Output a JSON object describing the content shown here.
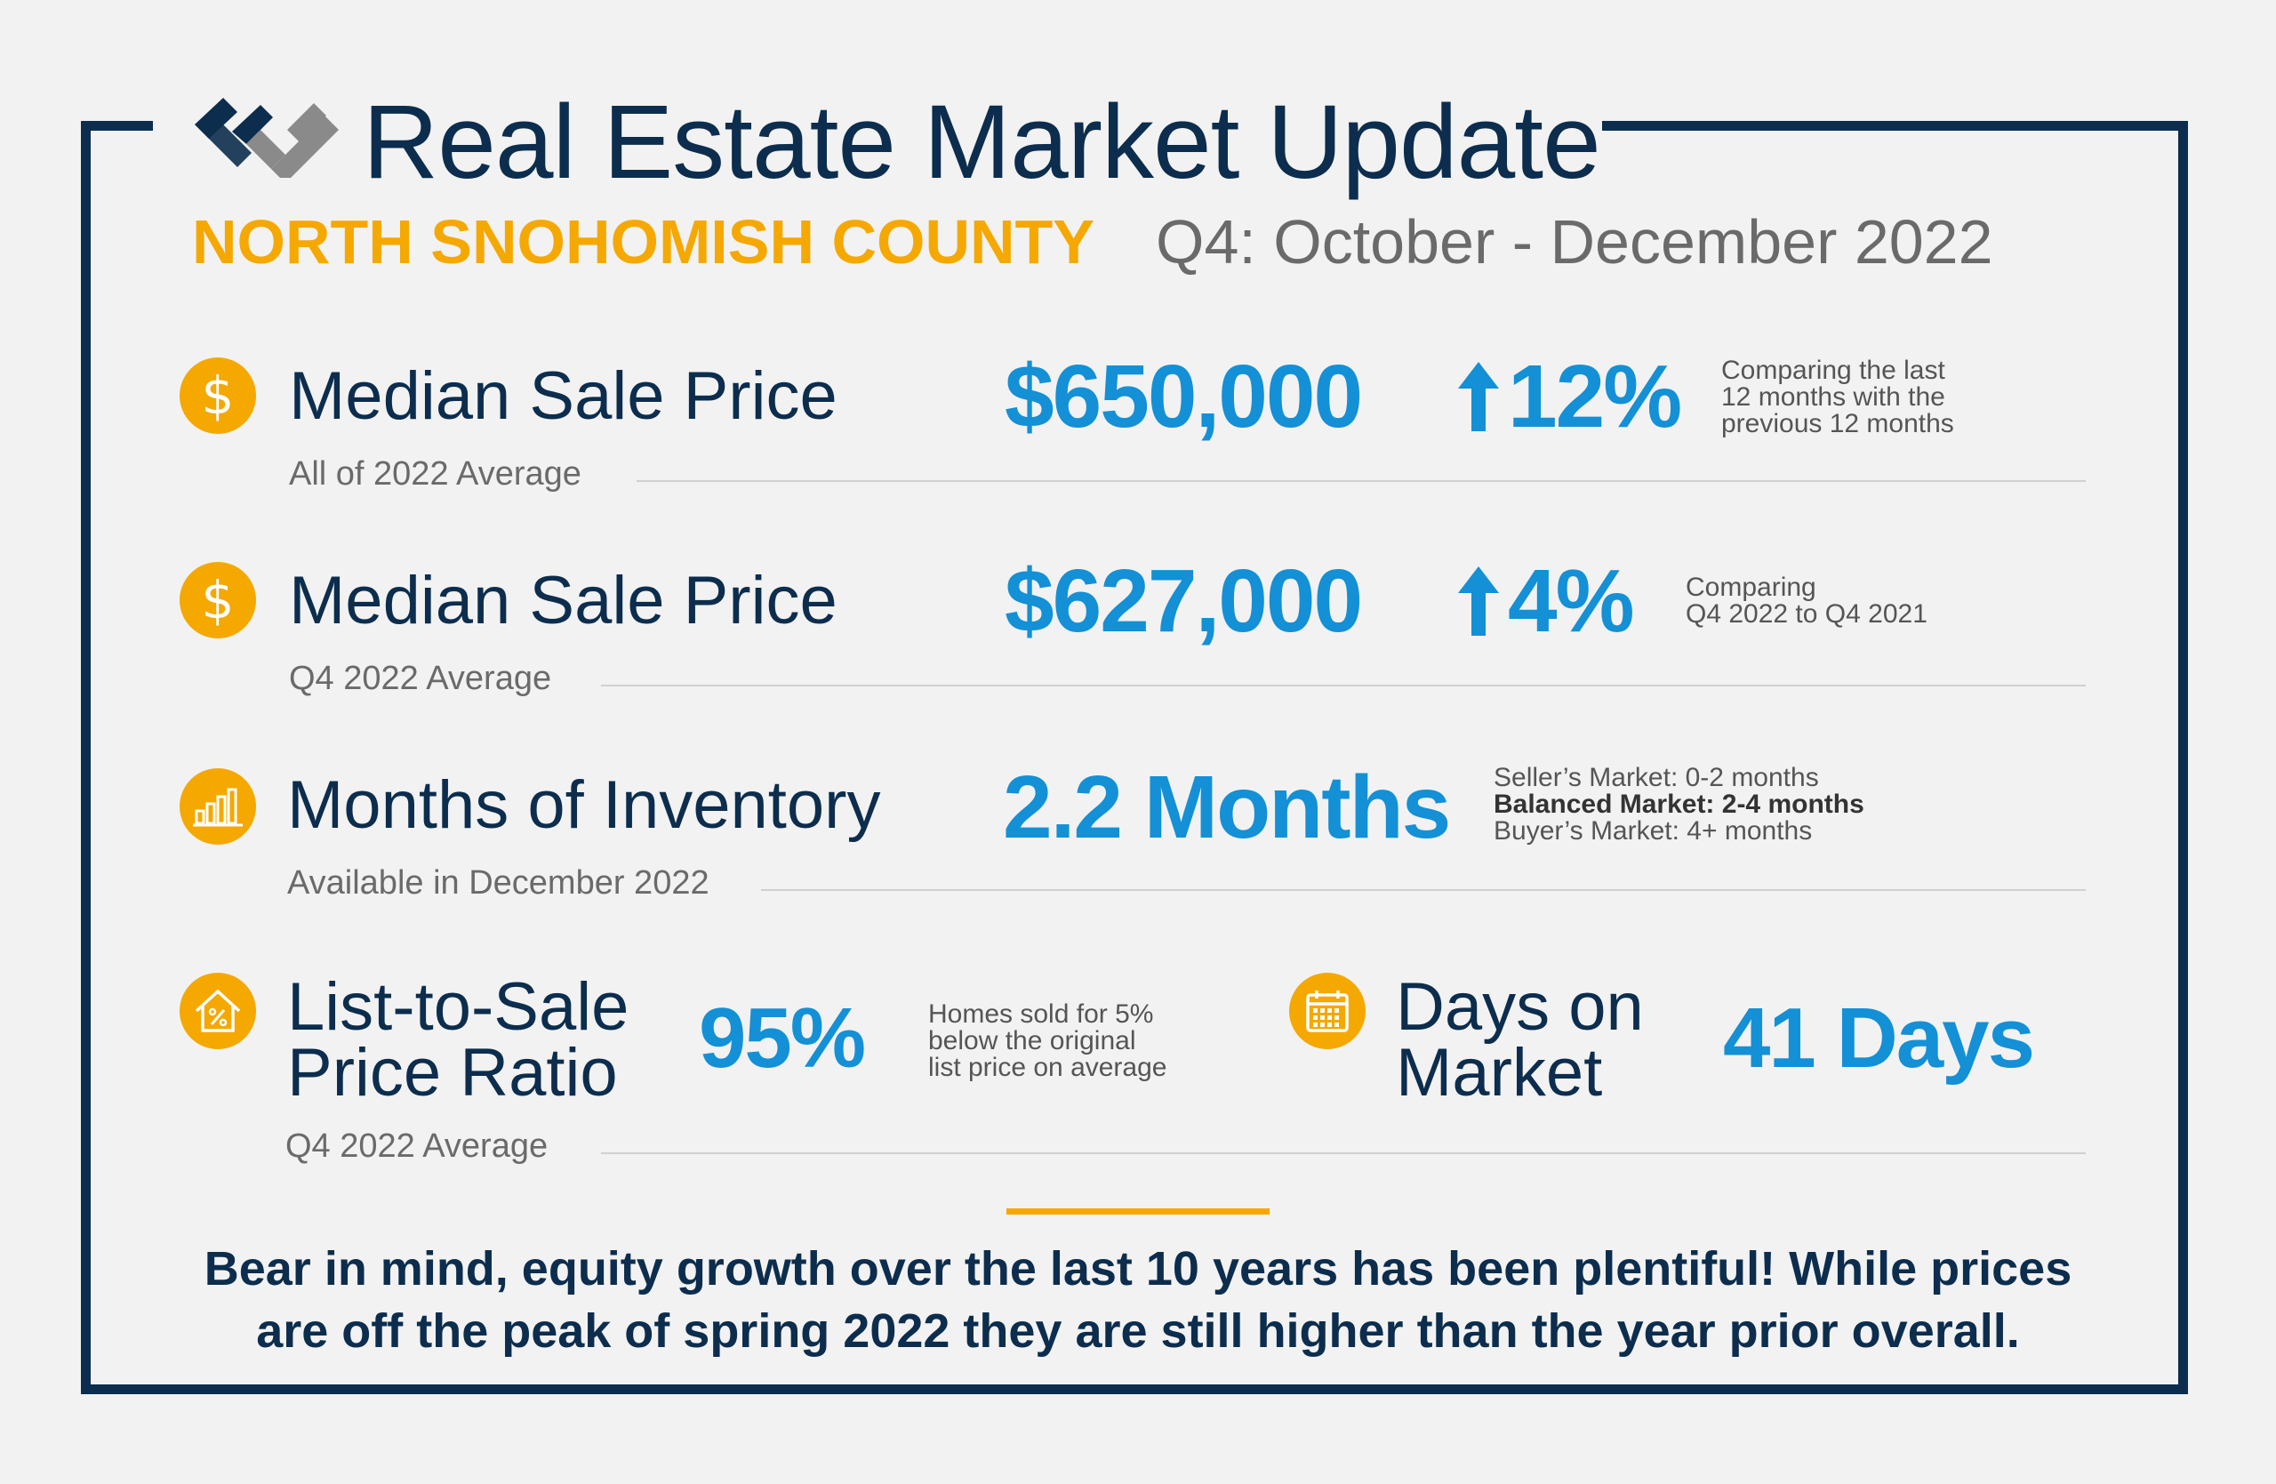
{
  "header": {
    "title": "Real Estate Market Update",
    "county": "NORTH SNOHOMISH COUNTY",
    "period": "Q4: October - December 2022"
  },
  "colors": {
    "navy": "#0c2d4d",
    "gold": "#f5a800",
    "blue": "#1390d6",
    "gray": "#6a6a6a"
  },
  "metrics": [
    {
      "icon": "dollar-icon",
      "label": "Median Sale Price",
      "sublabel": "All of 2022 Average",
      "value": "$650,000",
      "change": "12%",
      "change_direction": "up",
      "note_lines": [
        "Comparing the last",
        "12 months with the",
        "previous 12 months"
      ]
    },
    {
      "icon": "dollar-icon",
      "label": "Median Sale Price",
      "sublabel": "Q4 2022 Average",
      "value": "$627,000",
      "change": "4%",
      "change_direction": "up",
      "note_lines": [
        "Comparing",
        "Q4 2022 to Q4 2021"
      ]
    },
    {
      "icon": "bar-chart-icon",
      "label": "Months of Inventory",
      "sublabel": "Available in December 2022",
      "value": "2.2 Months",
      "note_lines": [
        "Seller’s Market: 0-2 months",
        "Balanced Market: 2-4 months",
        "Buyer’s Market: 4+ months"
      ]
    },
    {
      "icon": "house-percent-icon",
      "label_lines": [
        "List-to-Sale",
        "Price Ratio"
      ],
      "sublabel": "Q4 2022 Average",
      "value": "95%",
      "note_lines": [
        "Homes sold for 5%",
        "below the original",
        "list price on average"
      ]
    },
    {
      "icon": "calendar-icon",
      "label_lines": [
        "Days on",
        "Market"
      ],
      "value": "41 Days"
    }
  ],
  "footer": {
    "line1": "Bear in mind, equity growth over the last 10 years has been plentiful! While prices",
    "line2": "are off the peak of spring 2022 they are still higher than the year prior overall."
  }
}
